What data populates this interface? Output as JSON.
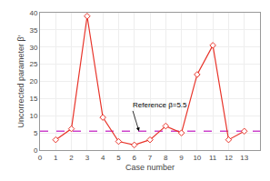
{
  "chart_data": {
    "type": "line",
    "x": [
      1,
      2,
      3,
      4,
      5,
      6,
      7,
      8,
      9,
      10,
      11,
      12,
      13
    ],
    "values": [
      3.0,
      6.2,
      39.0,
      9.5,
      2.5,
      1.5,
      3.0,
      7.0,
      5.0,
      22.0,
      30.5,
      3.0,
      5.5
    ],
    "color": "#e8342a",
    "marker": "diamond",
    "xlabel": "Case number",
    "ylabel": "Uncorrected parameter β′",
    "xlim": [
      0,
      14
    ],
    "ylim": [
      0,
      40
    ],
    "xticks": [
      0,
      1,
      2,
      3,
      4,
      5,
      6,
      7,
      8,
      9,
      10,
      11,
      12,
      13
    ],
    "yticks": [
      0,
      5,
      10,
      15,
      20,
      25,
      30,
      35,
      40
    ],
    "grid": true,
    "reference_line": {
      "value": 5.5,
      "color": "#cc44cc",
      "line_style": "dash"
    },
    "annotations": [
      {
        "text": "Reference β=5.5",
        "x": 6.3,
        "y": 5.5,
        "text_x": 5.8,
        "text_y": 13.0
      }
    ]
  }
}
